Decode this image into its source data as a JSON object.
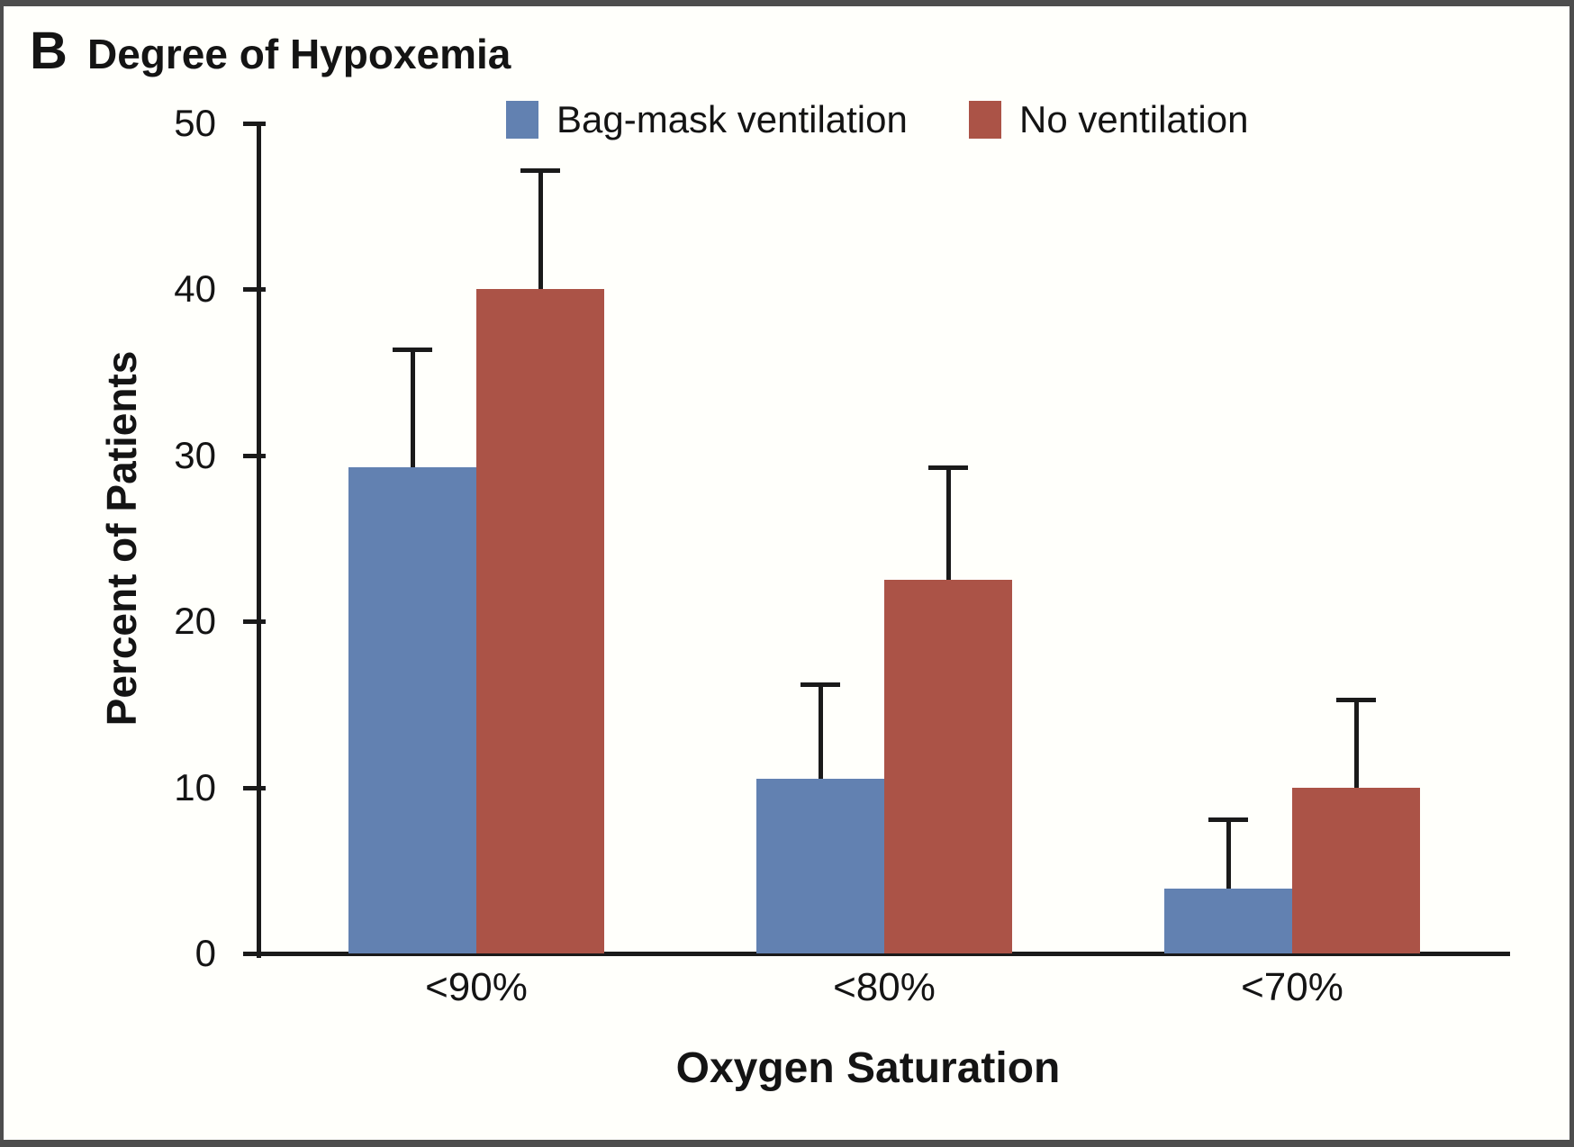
{
  "panel": {
    "label": "B",
    "title": "Degree of Hypoxemia"
  },
  "colors": {
    "bag_mask_blue": "#6281b1",
    "no_ventilation_red": "#ab5347",
    "axis_black": "#1a1a1a",
    "frame_gray": "#4d4d4d",
    "background": "#fffffb"
  },
  "chart_data": {
    "type": "bar",
    "title": "Degree of Hypoxemia",
    "categories": [
      "<90%",
      "<80%",
      "<70%"
    ],
    "series": [
      {
        "name": "Bag-mask ventilation",
        "color": "#6281b1",
        "values": [
          29.3,
          10.5,
          3.9
        ],
        "error_upper": [
          36.4,
          16.2,
          8.1
        ]
      },
      {
        "name": "No ventilation",
        "color": "#ab5347",
        "values": [
          40.0,
          22.5,
          10.0
        ],
        "error_upper": [
          47.2,
          29.3,
          15.3
        ]
      }
    ],
    "xlabel": "Oxygen Saturation",
    "ylabel": "Percent of Patients",
    "ylim": [
      0,
      50
    ],
    "yticks": [
      0,
      10,
      20,
      30,
      40,
      50
    ],
    "ytick_labels": [
      "0",
      "10",
      "20",
      "30",
      "40",
      "50"
    ],
    "grid": false,
    "legend_position": "top",
    "error_bars": "upper-only"
  }
}
